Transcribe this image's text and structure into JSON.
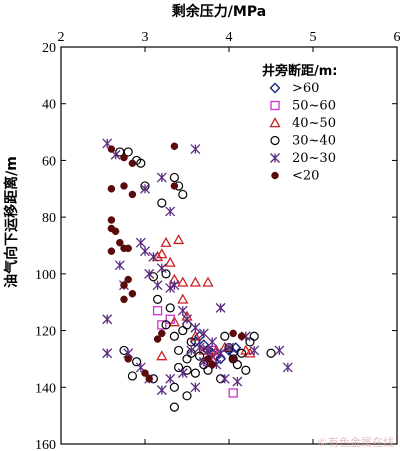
{
  "chart_data": {
    "type": "scatter",
    "xlabel": "剩余压力/MPa",
    "ylabel": "油气向下运移距离/m",
    "xlim": [
      2,
      6
    ],
    "ylim": [
      20,
      160
    ],
    "x_axis_position": "top",
    "y_inverted": true,
    "xticks": [
      "2",
      "3",
      "4",
      "5",
      "6"
    ],
    "yticks": [
      "20",
      "40",
      "60",
      "80",
      "100",
      "120",
      "140",
      "160"
    ],
    "grid": false,
    "legend_title": "井旁断距/m:",
    "legend_position": "top-right",
    "series": [
      {
        "name": ">60",
        "marker": "diamond",
        "color": "#1a237e",
        "points": [
          [
            3.65,
            122
          ],
          [
            3.7,
            125
          ],
          [
            3.75,
            127
          ],
          [
            3.8,
            128
          ],
          [
            3.85,
            129
          ],
          [
            4.0,
            127
          ],
          [
            4.05,
            128
          ],
          [
            4.08,
            126
          ],
          [
            3.6,
            124
          ],
          [
            3.9,
            130
          ]
        ]
      },
      {
        "name": "50~60",
        "marker": "square",
        "color": "#cc33cc",
        "points": [
          [
            3.15,
            113
          ],
          [
            3.2,
            118
          ],
          [
            3.3,
            116
          ],
          [
            3.75,
            131
          ],
          [
            3.8,
            127
          ],
          [
            4.05,
            142
          ]
        ]
      },
      {
        "name": "40~50",
        "marker": "triangle",
        "color": "#cc2222",
        "points": [
          [
            3.25,
            89
          ],
          [
            3.3,
            96
          ],
          [
            3.2,
            93
          ],
          [
            3.15,
            94
          ],
          [
            3.35,
            102
          ],
          [
            3.4,
            88
          ],
          [
            3.45,
            103
          ],
          [
            3.45,
            109
          ],
          [
            3.6,
            103
          ],
          [
            3.75,
            103
          ],
          [
            3.35,
            117
          ],
          [
            3.5,
            115
          ],
          [
            3.6,
            122
          ],
          [
            3.7,
            127
          ],
          [
            3.8,
            130
          ],
          [
            3.85,
            127
          ],
          [
            3.95,
            126
          ],
          [
            4.2,
            127
          ],
          [
            3.2,
            129
          ],
          [
            4.25,
            128
          ]
        ]
      },
      {
        "name": "30~40",
        "marker": "circle",
        "color": "#000000",
        "points": [
          [
            2.7,
            57
          ],
          [
            2.8,
            57
          ],
          [
            2.9,
            60
          ],
          [
            2.95,
            61
          ],
          [
            3.35,
            66
          ],
          [
            3.4,
            69
          ],
          [
            3.0,
            69
          ],
          [
            3.2,
            75
          ],
          [
            3.45,
            72
          ],
          [
            3.1,
            101
          ],
          [
            3.15,
            109
          ],
          [
            3.25,
            100
          ],
          [
            3.3,
            112
          ],
          [
            3.25,
            118
          ],
          [
            3.35,
            122
          ],
          [
            3.4,
            127
          ],
          [
            3.45,
            120
          ],
          [
            3.5,
            118
          ],
          [
            3.55,
            124
          ],
          [
            3.55,
            128
          ],
          [
            3.65,
            129
          ],
          [
            3.7,
            132
          ],
          [
            3.5,
            130
          ],
          [
            3.6,
            135
          ],
          [
            3.4,
            133
          ],
          [
            3.5,
            134
          ],
          [
            3.35,
            140
          ],
          [
            3.5,
            143
          ],
          [
            3.35,
            147
          ],
          [
            3.95,
            122
          ],
          [
            4.0,
            126
          ],
          [
            4.05,
            130
          ],
          [
            4.1,
            132
          ],
          [
            4.15,
            128
          ],
          [
            4.2,
            134
          ],
          [
            4.25,
            124
          ],
          [
            4.5,
            128
          ],
          [
            2.75,
            127
          ],
          [
            2.9,
            131
          ],
          [
            2.85,
            136
          ],
          [
            3.1,
            137
          ],
          [
            3.75,
            134
          ],
          [
            3.9,
            137
          ],
          [
            4.3,
            122
          ]
        ]
      },
      {
        "name": "20~30",
        "marker": "x",
        "color": "#5a2a80",
        "points": [
          [
            2.55,
            54
          ],
          [
            2.65,
            58
          ],
          [
            3.0,
            70
          ],
          [
            3.2,
            66
          ],
          [
            3.6,
            56
          ],
          [
            3.3,
            78
          ],
          [
            2.95,
            89
          ],
          [
            3.0,
            92
          ],
          [
            3.1,
            94
          ],
          [
            3.05,
            100
          ],
          [
            3.2,
            98
          ],
          [
            2.7,
            97
          ],
          [
            3.15,
            104
          ],
          [
            3.3,
            105
          ],
          [
            3.35,
            104
          ],
          [
            2.75,
            104
          ],
          [
            3.45,
            113
          ],
          [
            3.5,
            116
          ],
          [
            3.6,
            119
          ],
          [
            2.55,
            116
          ],
          [
            3.9,
            112
          ],
          [
            3.7,
            121
          ],
          [
            3.8,
            124
          ],
          [
            3.75,
            127
          ],
          [
            3.9,
            128
          ],
          [
            4.0,
            126
          ],
          [
            4.2,
            122
          ],
          [
            4.3,
            127
          ],
          [
            4.6,
            127
          ],
          [
            4.7,
            133
          ],
          [
            2.55,
            128
          ],
          [
            2.8,
            128
          ],
          [
            2.95,
            133
          ],
          [
            3.05,
            137
          ],
          [
            3.2,
            141
          ],
          [
            3.3,
            137
          ],
          [
            3.45,
            135
          ],
          [
            3.6,
            140
          ],
          [
            3.7,
            131
          ],
          [
            3.85,
            132
          ],
          [
            3.95,
            137
          ],
          [
            3.55,
            127
          ],
          [
            3.65,
            126
          ],
          [
            4.1,
            138
          ]
        ]
      },
      {
        "name": "<20",
        "marker": "filled-circle",
        "color": "#5a0a0a",
        "points": [
          [
            2.6,
            56
          ],
          [
            2.75,
            59
          ],
          [
            2.85,
            61
          ],
          [
            3.35,
            55
          ],
          [
            2.6,
            70
          ],
          [
            2.75,
            69
          ],
          [
            2.85,
            72
          ],
          [
            3.35,
            69
          ],
          [
            2.6,
            81
          ],
          [
            2.6,
            84
          ],
          [
            2.65,
            85
          ],
          [
            2.7,
            89
          ],
          [
            2.75,
            91
          ],
          [
            2.8,
            91
          ],
          [
            2.6,
            92
          ],
          [
            2.8,
            102
          ],
          [
            2.75,
            104
          ],
          [
            2.85,
            107
          ],
          [
            2.75,
            109
          ],
          [
            3.15,
            123
          ],
          [
            3.2,
            121
          ],
          [
            4.05,
            121
          ],
          [
            4.15,
            122
          ],
          [
            4.05,
            130
          ],
          [
            3.8,
            132
          ],
          [
            3.75,
            130
          ],
          [
            3.0,
            135
          ],
          [
            3.05,
            137
          ],
          [
            2.8,
            130
          ]
        ]
      }
    ],
    "legend_entries": [
      ">60",
      "50~60",
      "40~50",
      "30~40",
      "20~30",
      "<20"
    ],
    "watermark": "©有色金属在线"
  }
}
